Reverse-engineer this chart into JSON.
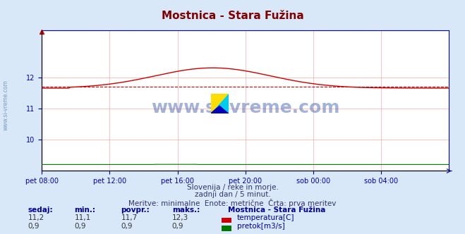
{
  "title": "Mostnica - Stara Fužina",
  "title_color": "#800000",
  "bg_color": "#d8e8f8",
  "plot_bg_color": "#ffffff",
  "grid_color": "#ffaaaa",
  "axis_color": "#0000aa",
  "text_color": "#000080",
  "xlabel_ticks": [
    "pet 08:00",
    "pet 12:00",
    "pet 16:00",
    "pet 20:00",
    "sob 00:00",
    "sob 04:00"
  ],
  "ylim_temp": [
    9.0,
    13.5
  ],
  "yticks_temp": [
    10,
    11,
    12
  ],
  "temp_color": "#cc0000",
  "flow_color": "#007700",
  "avg_line_color": "#cc0000",
  "subtitle_lines": [
    "Slovenija / reke in morje.",
    "zadnji dan / 5 minut.",
    "Meritve: minimalne  Enote: metrične  Črta: prva meritev"
  ],
  "station_name": "Mostnica - Stara Fužina",
  "watermark_text": "www.si-vreme.com",
  "avg_value": 11.7,
  "temp_min": 11.1,
  "temp_max": 12.3,
  "flow_avg": 0.9,
  "sedaj": "11,2",
  "min_t": "11,1",
  "povpr_t": "11,7",
  "maks_t": "12,3",
  "sedaj_f": "0,9",
  "min_f": "0,9",
  "povpr_f": "0,9",
  "maks_f": "0,9"
}
